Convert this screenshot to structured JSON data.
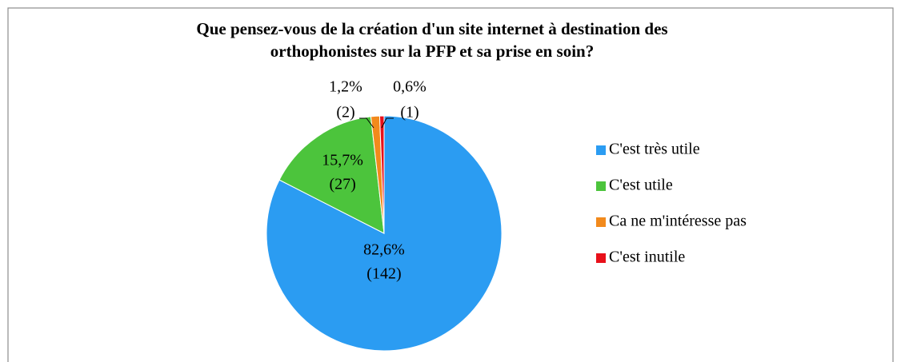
{
  "chart_data": {
    "type": "pie",
    "title": "Que pensez-vous de la création d'un site internet à destination des",
    "title_line2": "orthophonistes sur la PFP et sa prise en soin?",
    "categories": [
      "C'est très utile",
      "C'est utile",
      "Ca ne m'intéresse pas",
      "C'est inutile"
    ],
    "values": [
      82.6,
      15.7,
      1.2,
      0.6
    ],
    "value_labels": [
      "82,6%",
      "15,7%",
      "1,2%",
      "0,6%"
    ],
    "counts": [
      142,
      27,
      2,
      1
    ],
    "count_labels": [
      "(142)",
      "(27)",
      "(2)",
      "(1)"
    ],
    "colors": [
      "#2b9cf2",
      "#4cc43c",
      "#f28a1c",
      "#e8101a"
    ],
    "legend": "right"
  }
}
